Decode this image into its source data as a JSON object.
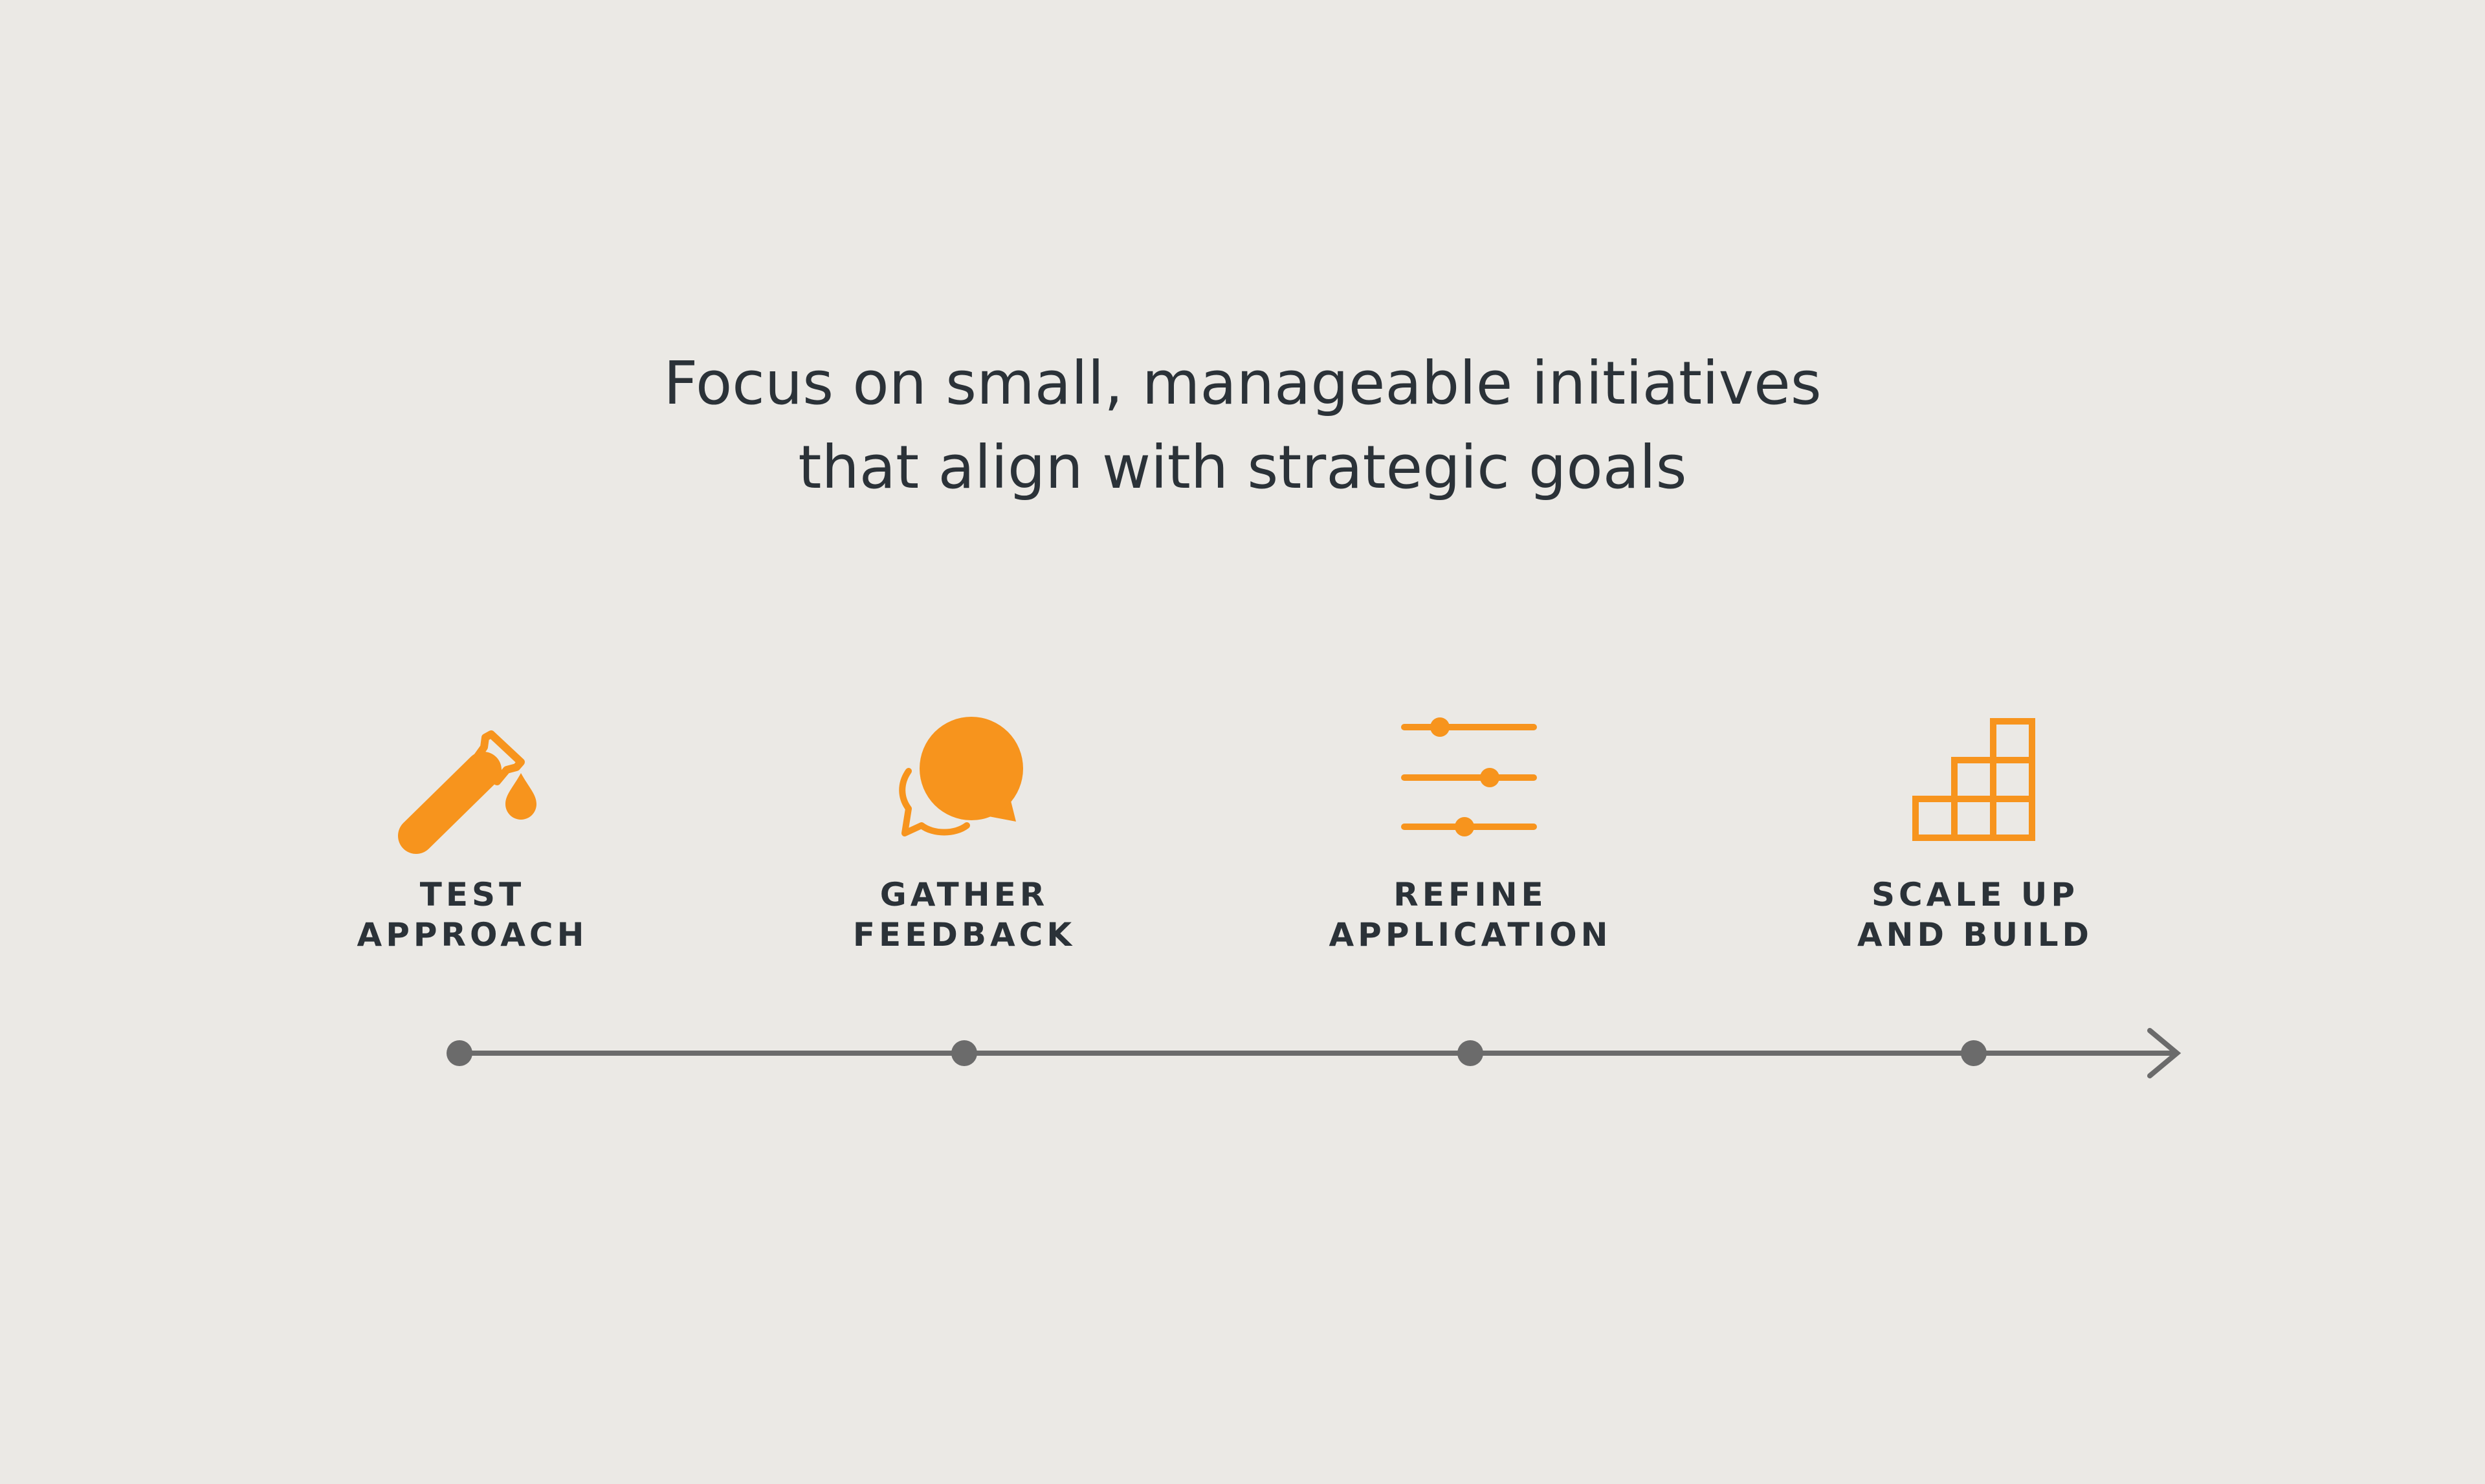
{
  "headline": {
    "line1": "Focus on small, manageable initiatives",
    "line2": "that align with strategic goals"
  },
  "colors": {
    "background": "#ebe9e5",
    "accent": "#f7941d",
    "text": "#2b3238",
    "timeline": "#6b6b6b"
  },
  "steps": [
    {
      "icon": "test-tube-icon",
      "line1": "TEST",
      "line2": "APPROACH"
    },
    {
      "icon": "speech-bubbles-icon",
      "line1": "GATHER",
      "line2": "FEEDBACK"
    },
    {
      "icon": "sliders-icon",
      "line1": "REFINE",
      "line2": "APPLICATION"
    },
    {
      "icon": "stacked-blocks-icon",
      "line1": "SCALE UP",
      "line2": "AND BUILD"
    }
  ]
}
